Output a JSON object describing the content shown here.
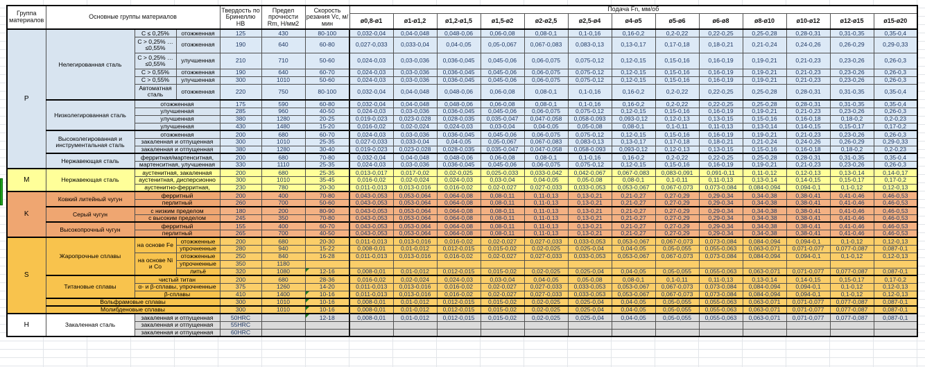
{
  "colors": {
    "p_left": "#D8E4F0",
    "p_data": "#DCE9F6",
    "m": "#FFFF99",
    "k_left": "#EFA671",
    "k_data": "#F4B183",
    "s_left": "#F8C34D",
    "s_data": "#FBCE69",
    "h": "#DBDBDB",
    "numeric_text": "#1F3864",
    "gridline": "#E2E5E9",
    "selection_green": "#1FA31F",
    "comment_mark_green": "#1E7B1E"
  },
  "header": {
    "col_group": "Группа материалов",
    "col_main": "Основные группы материалов",
    "col_hb": "Твердость по Бринеллю HB",
    "col_rm": "Предел прочности Rm, Н/мм2",
    "col_vc": "Скорость резания Vc, м/мин",
    "feed_title": "Подача Fn, мм/об",
    "diameters": [
      "ø0,8-ø1",
      "ø1-ø1,2",
      "ø1,2-ø1,5",
      "ø1,5-ø2",
      "ø2-ø2,5",
      "ø2,5-ø4",
      "ø4-ø5",
      "ø5-ø6",
      "ø6-ø8",
      "ø8-ø10",
      "ø10-ø12",
      "ø12-ø15",
      "ø15-ø20"
    ]
  },
  "feed_patterns": {
    "A": [
      "0,032-0,04",
      "0,04-0,048",
      "0,048-0,06",
      "0,06-0,08",
      "0,08-0,1",
      "0,1-0,16",
      "0,16-0,2",
      "0,2-0,22",
      "0,22-0,25",
      "0,25-0,28",
      "0,28-0,31",
      "0,31-0,35",
      "0,35-0,4"
    ],
    "B": [
      "0,027-0,033",
      "0,033-0,04",
      "0,04-0,05",
      "0,05-0,067",
      "0,067-0,083",
      "0,083-0,13",
      "0,13-0,17",
      "0,17-0,18",
      "0,18-0,21",
      "0,21-0,24",
      "0,24-0,26",
      "0,26-0,29",
      "0,29-0,33"
    ],
    "C": [
      "0,024-0,03",
      "0,03-0,036",
      "0,036-0,045",
      "0,045-0,06",
      "0,06-0,075",
      "0,075-0,12",
      "0,12-0,15",
      "0,15-0,16",
      "0,16-0,19",
      "0,19-0,21",
      "0,21-0,23",
      "0,23-0,26",
      "0,26-0,3"
    ],
    "D": [
      "0,019-0,023",
      "0,023-0,028",
      "0,028-0,035",
      "0,035-0,047",
      "0,047-0,058",
      "0,058-0,093",
      "0,093-0,12",
      "0,12-0,13",
      "0,13-0,15",
      "0,15-0,16",
      "0,16-0,18",
      "0,18-0,2",
      "0,2-0,23"
    ],
    "E": [
      "0,016-0,02",
      "0,02-0,024",
      "0,024-0,03",
      "0,03-0,04",
      "0,04-0,05",
      "0,05-0,08",
      "0,08-0,1",
      "0,1-0,11",
      "0,11-0,13",
      "0,13-0,14",
      "0,14-0,15",
      "0,15-0,17",
      "0,17-0,2"
    ],
    "F": [
      "0,013-0,017",
      "0,017-0,02",
      "0,02-0,025",
      "0,025-0,033",
      "0,033-0,042",
      "0,042-0,067",
      "0,067-0,083",
      "0,083-0,091",
      "0,091-0,11",
      "0,11-0,12",
      "0,12-0,13",
      "0,13-0,14",
      "0,14-0,17"
    ],
    "G": [
      "0,011-0,013",
      "0,013-0,016",
      "0,016-0,02",
      "0,02-0,027",
      "0,027-0,033",
      "0,033-0,053",
      "0,053-0,067",
      "0,067-0,073",
      "0,073-0,084",
      "0,084-0,094",
      "0,094-0,1",
      "0,1-0,12",
      "0,12-0,13"
    ],
    "H": [
      "0,008-0,01",
      "0,01-0,012",
      "0,012-0,015",
      "0,015-0,02",
      "0,02-0,025",
      "0,025-0,04",
      "0,04-0,05",
      "0,05-0,055",
      "0,055-0,063",
      "0,063-0,071",
      "0,071-0,077",
      "0,077-0,087",
      "0,087-0,1"
    ],
    "K": [
      "0,043-0,053",
      "0,053-0,064",
      "0,064-0,08",
      "0,08-0,11",
      "0,11-0,13",
      "0,13-0,21",
      "0,21-0,27",
      "0,27-0,29",
      "0,29-0,34",
      "0,34-0,38",
      "0,38-0,41",
      "0,41-0,46",
      "0,46-0,53"
    ]
  },
  "groups": [
    {
      "code": "P",
      "style": "p",
      "rows": [
        {
          "bt": true,
          "cells": [
            {
              "t": "Нелегированная сталь",
              "rs": 6
            },
            {
              "t": "C ≤ 0,25%"
            },
            {
              "t": "отожженная"
            }
          ],
          "hb": "125",
          "rm": "430",
          "vc": "80-100",
          "f": "A"
        },
        {
          "h2": true,
          "cells": [
            {
              "t": "C > 0,25% … ≤0,55%"
            },
            {
              "t": "отожженная"
            }
          ],
          "hb": "190",
          "rm": "640",
          "vc": "60-80",
          "f": "B"
        },
        {
          "h2": true,
          "cells": [
            {
              "t": "C > 0,25% … ≤0,55%"
            },
            {
              "t": "улучшенная"
            }
          ],
          "hb": "210",
          "rm": "710",
          "vc": "50-60",
          "f": "C"
        },
        {
          "cells": [
            {
              "t": "C > 0,55%"
            },
            {
              "t": "отожженная"
            }
          ],
          "hb": "190",
          "rm": "640",
          "vc": "60-70",
          "f": "C"
        },
        {
          "cells": [
            {
              "t": "C > 0,55%"
            },
            {
              "t": "улучшенная"
            }
          ],
          "hb": "300",
          "rm": "1010",
          "vc": "50-60",
          "f": "C"
        },
        {
          "h2": true,
          "cells": [
            {
              "t": "Автоматная сталь"
            },
            {
              "t": "отожженная"
            }
          ],
          "hb": "220",
          "rm": "750",
          "vc": "80-100",
          "f": "A"
        },
        {
          "bt": true,
          "cells": [
            {
              "t": "Низколегированная сталь",
              "rs": 4
            },
            {
              "t": "отожженная",
              "cs": 2
            }
          ],
          "hb": "175",
          "rm": "590",
          "vc": "60-80",
          "f": "A"
        },
        {
          "cells": [
            {
              "t": "улучшенная",
              "cs": 2
            }
          ],
          "hb": "285",
          "rm": "960",
          "vc": "40-50",
          "f": "C"
        },
        {
          "cells": [
            {
              "t": "улучшенная",
              "cs": 2
            }
          ],
          "hb": "380",
          "rm": "1280",
          "vc": "20-25",
          "f": "D"
        },
        {
          "cells": [
            {
              "t": "улучшенная",
              "cs": 2
            }
          ],
          "hb": "430",
          "rm": "1480",
          "vc": "15-20",
          "f": "E"
        },
        {
          "bt": true,
          "cells": [
            {
              "t": "Высоколегированная и инструментальная сталь",
              "rs": 3
            },
            {
              "t": "отожженная",
              "cs": 2
            }
          ],
          "hb": "200",
          "rm": "680",
          "vc": "60-70",
          "f": "C"
        },
        {
          "cells": [
            {
              "t": "закаленная и отпущенная",
              "cs": 2
            }
          ],
          "hb": "300",
          "rm": "1010",
          "vc": "25-35",
          "f": "B"
        },
        {
          "cells": [
            {
              "t": "закаленная и отпущенная",
              "cs": 2
            }
          ],
          "hb": "380",
          "rm": "1280",
          "vc": "30-40",
          "f": "D"
        },
        {
          "bt": true,
          "cells": [
            {
              "t": "Нержавеющая сталь",
              "rs": 2
            },
            {
              "t": "ферритная/мартенситная,",
              "cs": 2
            }
          ],
          "hb": "200",
          "rm": "680",
          "vc": "70-80",
          "f": "A"
        },
        {
          "cells": [
            {
              "t": "мартенситная, улучшенная",
              "cs": 2
            }
          ],
          "hb": "330",
          "rm": "1110",
          "vc": "25-35",
          "f": "C"
        }
      ]
    },
    {
      "code": "M",
      "style": "m",
      "rows": [
        {
          "bt": true,
          "cells": [
            {
              "t": "Нержавеющая сталь",
              "rs": 3
            },
            {
              "t": "аустенитная, закаленная",
              "cs": 2
            }
          ],
          "hb": "200",
          "rm": "680",
          "vc": "25-35",
          "f": "F"
        },
        {
          "cells": [
            {
              "t": "аустенитная, дисперсионно",
              "cs": 2
            }
          ],
          "hb": "300",
          "rm": "1010",
          "vc": "35-45",
          "f": "E"
        },
        {
          "cells": [
            {
              "t": "аустенитно-ферритная,",
              "cs": 2
            }
          ],
          "hb": "230",
          "rm": "780",
          "vc": "20-30",
          "f": "G"
        }
      ]
    },
    {
      "code": "K",
      "style": "k",
      "rows": [
        {
          "bt": true,
          "cells": [
            {
              "t": "Ковкий литейный чугун",
              "rs": 2
            },
            {
              "t": "ферритный",
              "cs": 2
            }
          ],
          "hb": "200",
          "rm": "400",
          "vc": "70-80",
          "f": "K"
        },
        {
          "cells": [
            {
              "t": "перлитный",
              "cs": 2
            }
          ],
          "hb": "260",
          "rm": "700",
          "vc": "50-60",
          "f": "K"
        },
        {
          "bt": true,
          "cells": [
            {
              "t": "Серый чугун",
              "rs": 2
            },
            {
              "t": "с низким пределом",
              "cs": 2
            }
          ],
          "hb": "180",
          "rm": "200",
          "vc": "80-90",
          "f": "K"
        },
        {
          "cells": [
            {
              "t": "с высоким пределом",
              "cs": 2
            }
          ],
          "hb": "245",
          "rm": "350",
          "vc": "70-80",
          "f": "K"
        },
        {
          "bt": true,
          "cells": [
            {
              "t": "Высокопрочный чугун",
              "rs": 2
            },
            {
              "t": "ферритный",
              "cs": 2
            }
          ],
          "hb": "155",
          "rm": "400",
          "vc": "60-70",
          "f": "K"
        },
        {
          "cells": [
            {
              "t": "перлитный",
              "cs": 2
            }
          ],
          "hb": "265",
          "rm": "700",
          "vc": "40-50",
          "f": "K"
        }
      ]
    },
    {
      "code": "S",
      "style": "s",
      "rows": [
        {
          "bt": true,
          "cells": [
            {
              "t": "Жаропрочные сплавы",
              "rs": 5
            },
            {
              "t": "на основе Fe",
              "rs": 2
            },
            {
              "t": "отожженные"
            }
          ],
          "hb": "200",
          "rm": "680",
          "vc": "20-30",
          "f": "G"
        },
        {
          "cells": [
            {
              "t": "упрочненные"
            }
          ],
          "hb": "280",
          "rm": "940",
          "vc": "15-22",
          "f": "H"
        },
        {
          "cells": [
            {
              "t": "на основе Ni и Co",
              "rs": 3
            },
            {
              "t": "отожженные"
            }
          ],
          "hb": "250",
          "rm": "840",
          "vc": "16-28",
          "f": "G"
        },
        {
          "cells": [
            {
              "t": "упрочненные"
            }
          ],
          "hb": "350",
          "rm": "1180",
          "vc": "",
          "f": null
        },
        {
          "cells": [
            {
              "t": "литьё"
            }
          ],
          "hb": "320",
          "rm": "1080",
          "vc": "12-16",
          "vm": true,
          "f": "H"
        },
        {
          "bt": true,
          "cells": [
            {
              "t": "Титановые сплавы",
              "rs": 3
            },
            {
              "t": "чистый титан",
              "cs": 2
            }
          ],
          "hb": "200",
          "rm": "680",
          "vc": "28-36",
          "f": "E"
        },
        {
          "cells": [
            {
              "t": "α- и β-сплавы, упрочненные",
              "cs": 2
            }
          ],
          "hb": "375",
          "rm": "1260",
          "vc": "14-20",
          "f": "G"
        },
        {
          "cells": [
            {
              "t": "β-сплавы",
              "cs": 2
            }
          ],
          "hb": "410",
          "rm": "1400",
          "vc": "10-16",
          "vm": true,
          "f": "G"
        },
        {
          "bt": true,
          "cells": [
            {
              "t": "Вольфрамовые сплавы",
              "cs": 3
            }
          ],
          "hb": "300",
          "rm": "1010",
          "vc": "10-16",
          "vm": true,
          "f": "H"
        },
        {
          "bt": true,
          "cells": [
            {
              "t": "Молибденовые сплавы",
              "cs": 3
            }
          ],
          "hb": "300",
          "rm": "1010",
          "vc": "10-16",
          "vm": true,
          "f": "H"
        }
      ]
    },
    {
      "code": "H",
      "style": "h",
      "wh": true,
      "rows": [
        {
          "bt": true,
          "cells": [
            {
              "t": "Закаленная сталь",
              "rs": 3,
              "c": "wh"
            },
            {
              "t": "закаленная и отпущенная",
              "cs": 2
            }
          ],
          "hb": "50HRC",
          "rm": "",
          "vc": "12-18",
          "vm": true,
          "f": "H"
        },
        {
          "cells": [
            {
              "t": "закаленная и отпущенная",
              "cs": 2
            }
          ],
          "hb": "55HRC",
          "rm": "",
          "vc": "",
          "f": null
        },
        {
          "cells": [
            {
              "t": "закаленная и отпущенная",
              "cs": 2
            }
          ],
          "hb": "60HRC",
          "rm": "",
          "vc": "",
          "f": null
        }
      ]
    }
  ]
}
